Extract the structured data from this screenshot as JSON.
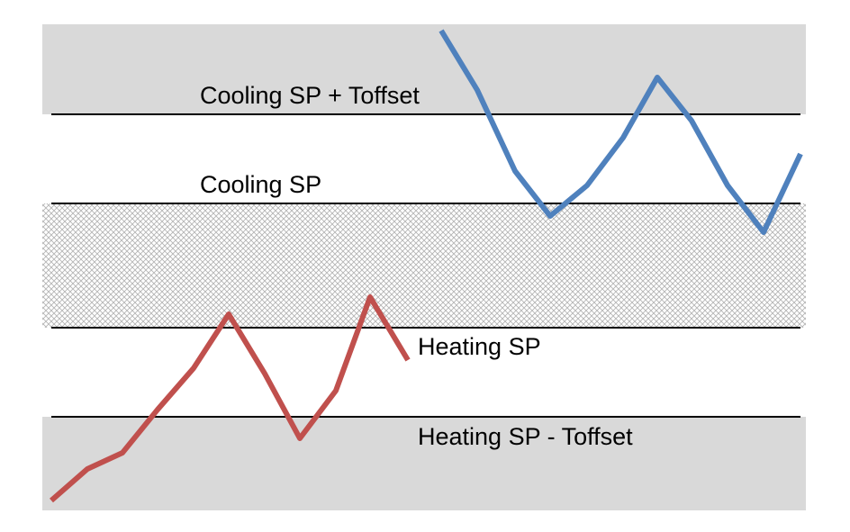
{
  "labels": {
    "cooling_sp_plus_offset": "Cooling SP + Toffset",
    "cooling_sp": "Cooling SP",
    "heating_sp": "Heating SP",
    "heating_sp_minus_offset": "Heating SP - Toffset"
  },
  "colors": {
    "offset_band": "#d9d9d9",
    "deadband_hatch": "#b4b4b4",
    "setpoint_line": "#000000",
    "cooling_trace": "#4f81bd",
    "heating_trace": "#c0504d"
  }
}
